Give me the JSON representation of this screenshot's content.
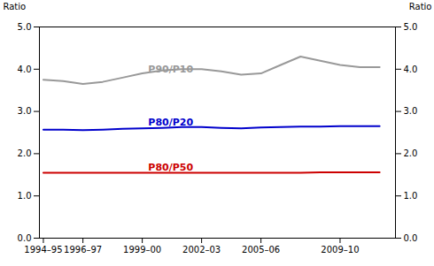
{
  "chart_data": {
    "type": "line",
    "x": [
      1994.5,
      1995.5,
      1996.5,
      1997.5,
      1998.5,
      1999.5,
      2000.5,
      2001.5,
      2002.5,
      2003.5,
      2004.5,
      2005.5,
      2006.5,
      2007.5,
      2008.5,
      2009.5,
      2010.5,
      2011.5
    ],
    "series": [
      {
        "color": "#999999",
        "values": [
          3.75,
          3.72,
          3.65,
          3.7,
          3.8,
          3.9,
          3.97,
          4.0,
          4.0,
          3.95,
          3.87,
          3.9,
          4.1,
          4.3,
          4.2,
          4.1,
          4.05,
          4.05
        ]
      },
      {
        "color": "#0000cc",
        "values": [
          2.57,
          2.57,
          2.56,
          2.57,
          2.59,
          2.6,
          2.61,
          2.63,
          2.63,
          2.61,
          2.6,
          2.62,
          2.63,
          2.64,
          2.64,
          2.65,
          2.65,
          2.65
        ]
      },
      {
        "color": "#cc0000",
        "values": [
          1.55,
          1.55,
          1.55,
          1.55,
          1.55,
          1.55,
          1.55,
          1.55,
          1.55,
          1.55,
          1.55,
          1.55,
          1.55,
          1.55,
          1.56,
          1.56,
          1.56,
          1.56
        ]
      }
    ],
    "xlim": [
      1994.3,
      2012.3
    ],
    "xticks": [
      {
        "value": 1994.5,
        "label": "1994–95"
      },
      {
        "value": 1996.5,
        "label": "1996–97"
      },
      {
        "value": 1999.5,
        "label": "1999–00"
      },
      {
        "value": 2002.5,
        "label": "2002–03"
      },
      {
        "value": 2005.5,
        "label": "2005–06"
      },
      {
        "value": 2009.5,
        "label": "2009–10"
      }
    ],
    "ylim": [
      0,
      5
    ],
    "yticks": [
      0,
      1,
      2,
      3,
      4,
      5
    ],
    "ylabel": "Ratio",
    "y2lim": [
      0,
      5
    ],
    "y2ticks": [
      0,
      1,
      2,
      3,
      4,
      5
    ],
    "y2label": "Ratio",
    "annotations": [
      {
        "text": "P90/P10",
        "x": 1999.8,
        "y": 3.93,
        "color": "#999999"
      },
      {
        "text": "P80/P20",
        "x": 1999.8,
        "y": 2.67,
        "color": "#0000cc"
      },
      {
        "text": "P80/P50",
        "x": 1999.8,
        "y": 1.6,
        "color": "#cc0000"
      }
    ]
  }
}
